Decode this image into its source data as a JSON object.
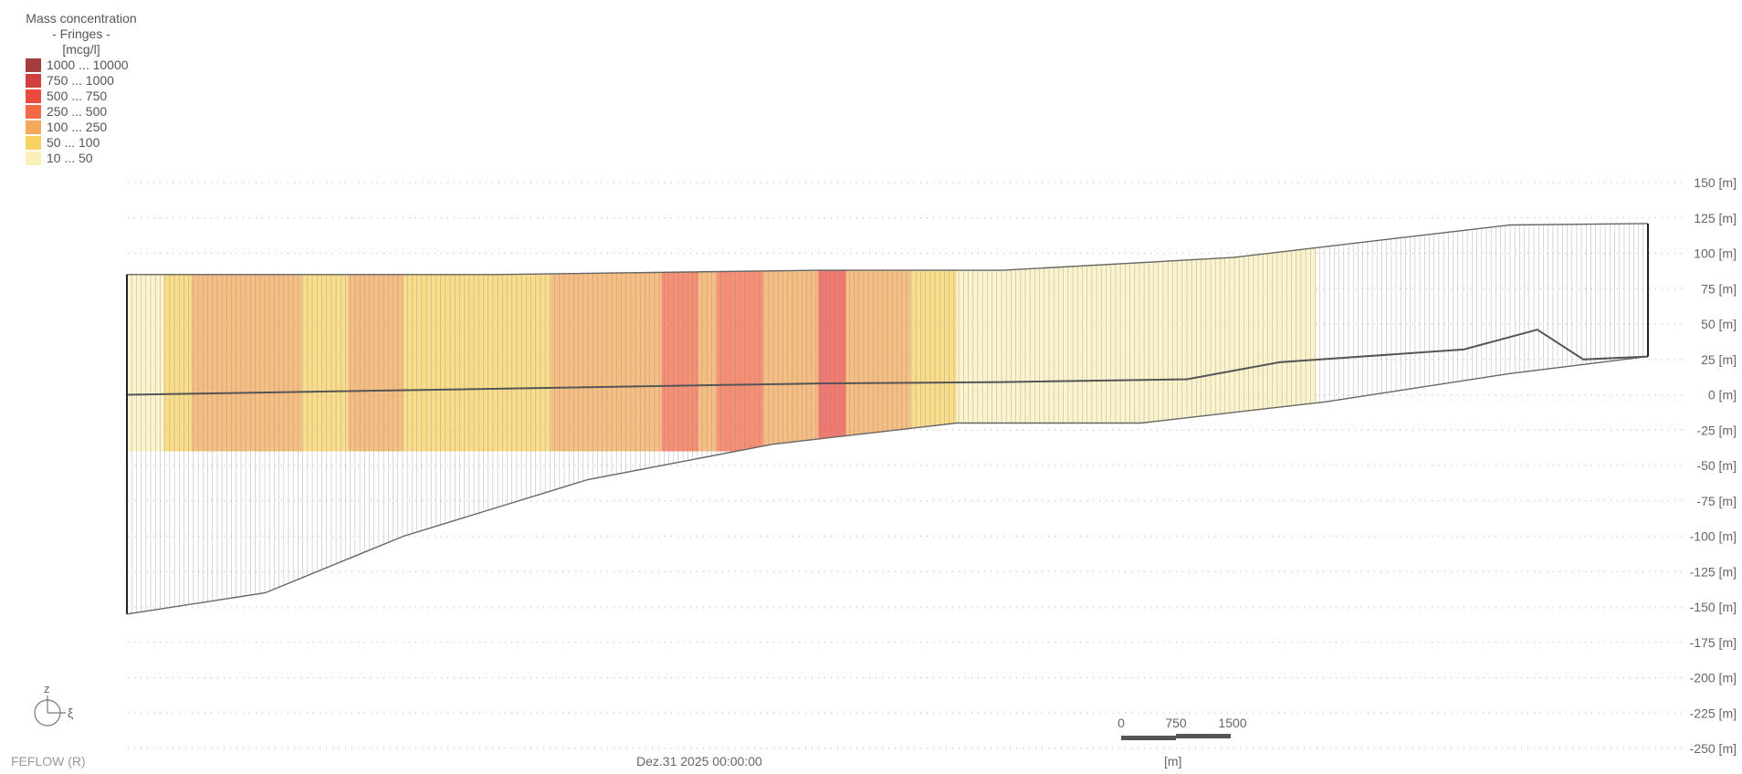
{
  "legend": {
    "title": "Mass concentration",
    "subtitle": "- Fringes -",
    "unit": "[mcg/l]",
    "classes": [
      {
        "label": "1000 ... 10000",
        "color": "#a63d3d"
      },
      {
        "label": "750 ... 1000",
        "color": "#d0403f"
      },
      {
        "label": "500 ... 750",
        "color": "#ec4c40"
      },
      {
        "label": "250 ... 500",
        "color": "#f46a45"
      },
      {
        "label": "100 ... 250",
        "color": "#f3a85a"
      },
      {
        "label": "50 ... 100",
        "color": "#f7d263"
      },
      {
        "label": "10 ... 50",
        "color": "#f8efb9"
      }
    ]
  },
  "footer": {
    "brand": "FEFLOW (R)",
    "date": "Dez.31 2025 00:00:00"
  },
  "scale_bar": {
    "tick_labels": [
      "0",
      "750",
      "1500"
    ],
    "unit": "[m]"
  },
  "axis_triad": {
    "up_label": "z",
    "right_label": "ξ"
  },
  "chart_data": {
    "type": "heatmap",
    "title": "Mass concentration",
    "ylabel": "[m]",
    "y_unit": "[m]",
    "y_ticks": [
      150,
      125,
      100,
      75,
      50,
      25,
      0,
      -25,
      -50,
      -75,
      -100,
      -125,
      -150,
      -175,
      -200,
      -225,
      -250
    ],
    "y_tick_labels": [
      "150 [m]",
      "125 [m]",
      "100 [m]",
      "75 [m]",
      "50 [m]",
      "25 [m]",
      "0 [m]",
      "-25 [m]",
      "-50 [m]",
      "-75 [m]",
      "-100 [m]",
      "-125 [m]",
      "-150 [m]",
      "-175 [m]",
      "-200 [m]",
      "-225 [m]",
      "-250 [m]"
    ],
    "ylim": [
      -250,
      150
    ],
    "grid": true,
    "section_x_m": [
      0,
      16500
    ],
    "top_surface_m": [
      {
        "x": 0,
        "y": 85
      },
      {
        "x": 4000,
        "y": 85
      },
      {
        "x": 7500,
        "y": 88
      },
      {
        "x": 9500,
        "y": 88
      },
      {
        "x": 12000,
        "y": 97
      },
      {
        "x": 15000,
        "y": 120
      },
      {
        "x": 16500,
        "y": 121
      }
    ],
    "bottom_surface_m": [
      {
        "x": 0,
        "y": -155
      },
      {
        "x": 1500,
        "y": -140
      },
      {
        "x": 3000,
        "y": -100
      },
      {
        "x": 5000,
        "y": -60
      },
      {
        "x": 7000,
        "y": -35
      },
      {
        "x": 9000,
        "y": -20
      },
      {
        "x": 11000,
        "y": -20
      },
      {
        "x": 13000,
        "y": -5
      },
      {
        "x": 15000,
        "y": 15
      },
      {
        "x": 16500,
        "y": 27
      }
    ],
    "layer_interface_m": [
      {
        "x": 0,
        "y": 0
      },
      {
        "x": 7500,
        "y": 8
      },
      {
        "x": 9500,
        "y": 9
      },
      {
        "x": 11500,
        "y": 11
      },
      {
        "x": 12500,
        "y": 23
      },
      {
        "x": 14500,
        "y": 32
      },
      {
        "x": 15300,
        "y": 46
      },
      {
        "x": 15800,
        "y": 25
      },
      {
        "x": 16500,
        "y": 27
      }
    ],
    "concentration_bands": [
      {
        "x0": 0,
        "x1": 400,
        "cls": "10 ... 50"
      },
      {
        "x0": 400,
        "x1": 700,
        "cls": "50 ... 100"
      },
      {
        "x0": 700,
        "x1": 1900,
        "cls": "100 ... 250"
      },
      {
        "x0": 1900,
        "x1": 2400,
        "cls": "50 ... 100"
      },
      {
        "x0": 2400,
        "x1": 3000,
        "cls": "100 ... 250"
      },
      {
        "x0": 3000,
        "x1": 4600,
        "cls": "50 ... 100"
      },
      {
        "x0": 4600,
        "x1": 5800,
        "cls": "100 ... 250"
      },
      {
        "x0": 5800,
        "x1": 6200,
        "cls": "250 ... 500"
      },
      {
        "x0": 6200,
        "x1": 6400,
        "cls": "100 ... 250"
      },
      {
        "x0": 6400,
        "x1": 6900,
        "cls": "250 ... 500"
      },
      {
        "x0": 6900,
        "x1": 7500,
        "cls": "100 ... 250"
      },
      {
        "x0": 7500,
        "x1": 7800,
        "cls": "500 ... 750"
      },
      {
        "x0": 7800,
        "x1": 8500,
        "cls": "100 ... 250"
      },
      {
        "x0": 8500,
        "x1": 9000,
        "cls": "50 ... 100"
      },
      {
        "x0": 9000,
        "x1": 12900,
        "cls": "10 ... 50"
      }
    ],
    "x_scale_bar_m": [
      0,
      750,
      1500
    ]
  }
}
